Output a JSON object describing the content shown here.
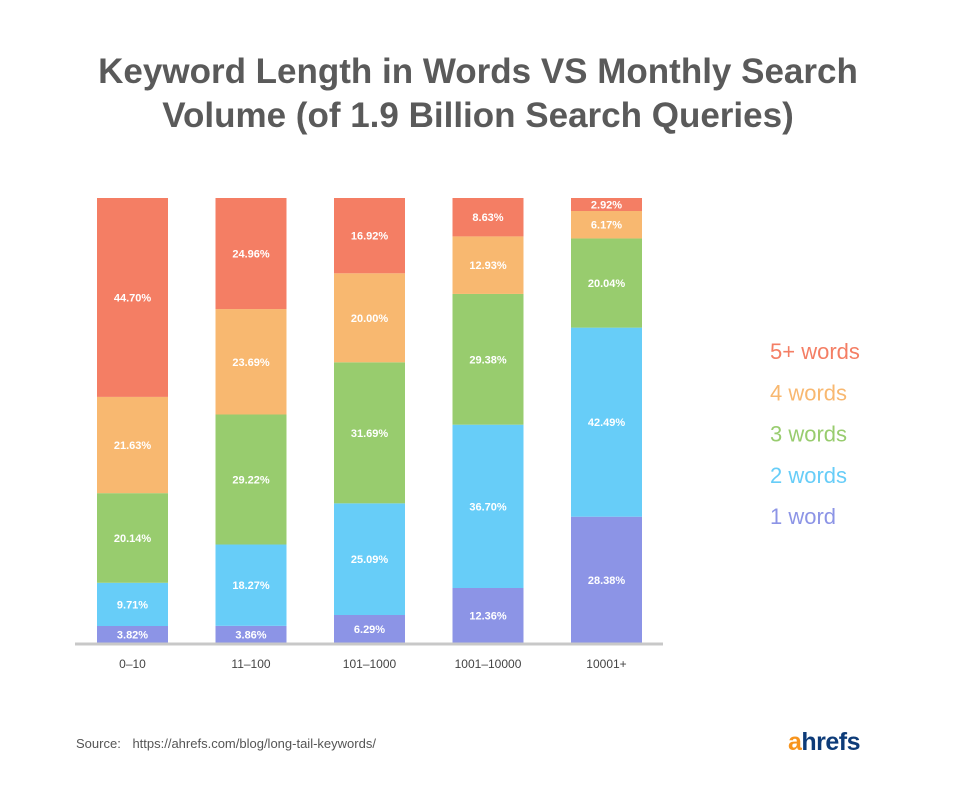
{
  "chart_data": {
    "type": "bar",
    "stacked": true,
    "title": "Keyword Length in Words VS Monthly Search Volume (of 1.9 Billion Search Queries)",
    "title_lines": [
      "Keyword Length in Words VS Monthly Search",
      "Volume (of 1.9 Billion Search Queries)"
    ],
    "xlabel": "",
    "ylabel": "",
    "ylim": [
      0,
      100
    ],
    "grid": false,
    "legend_position": "right",
    "categories": [
      "0–10",
      "11–100",
      "101–1000",
      "1001–10000",
      "10001+"
    ],
    "series": [
      {
        "name": "1 word",
        "color": "#8c94e6",
        "values": [
          3.82,
          3.86,
          6.29,
          12.36,
          28.38
        ]
      },
      {
        "name": "2 words",
        "color": "#67cdf8",
        "values": [
          9.71,
          18.27,
          25.09,
          36.7,
          42.49
        ]
      },
      {
        "name": "3 words",
        "color": "#98cc6e",
        "values": [
          20.14,
          29.22,
          31.69,
          29.38,
          20.04
        ]
      },
      {
        "name": "4 words",
        "color": "#f8b870",
        "values": [
          21.63,
          23.69,
          20.0,
          12.93,
          6.17
        ]
      },
      {
        "name": "5+ words",
        "color": "#f47e64",
        "values": [
          44.7,
          24.96,
          16.92,
          8.63,
          2.92
        ]
      }
    ],
    "data_labels": [
      [
        "3.82%",
        "3.86%",
        "6.29%",
        "12.36%",
        "28.38%"
      ],
      [
        "9.71%",
        "18.27%",
        "25.09%",
        "36.70%",
        "42.49%"
      ],
      [
        "20.14%",
        "29.22%",
        "31.69%",
        "29.38%",
        "20.04%"
      ],
      [
        "21.63%",
        "23.69%",
        "20.00%",
        "12.93%",
        "6.17%"
      ],
      [
        "44.70%",
        "24.96%",
        "16.92%",
        "8.63%",
        "2.92%"
      ]
    ],
    "legend_order": [
      "5+ words",
      "4 words",
      "3 words",
      "2 words",
      "1 word"
    ]
  },
  "footer": {
    "source_label": "Source:",
    "source_url": "https://ahrefs.com/blog/long-tail-keywords/",
    "logo_accent": "a",
    "logo_rest": "hrefs"
  },
  "colors": {
    "axis": "#c8c8c8",
    "data_label": "#ffffff",
    "tick_label": "#444444"
  }
}
